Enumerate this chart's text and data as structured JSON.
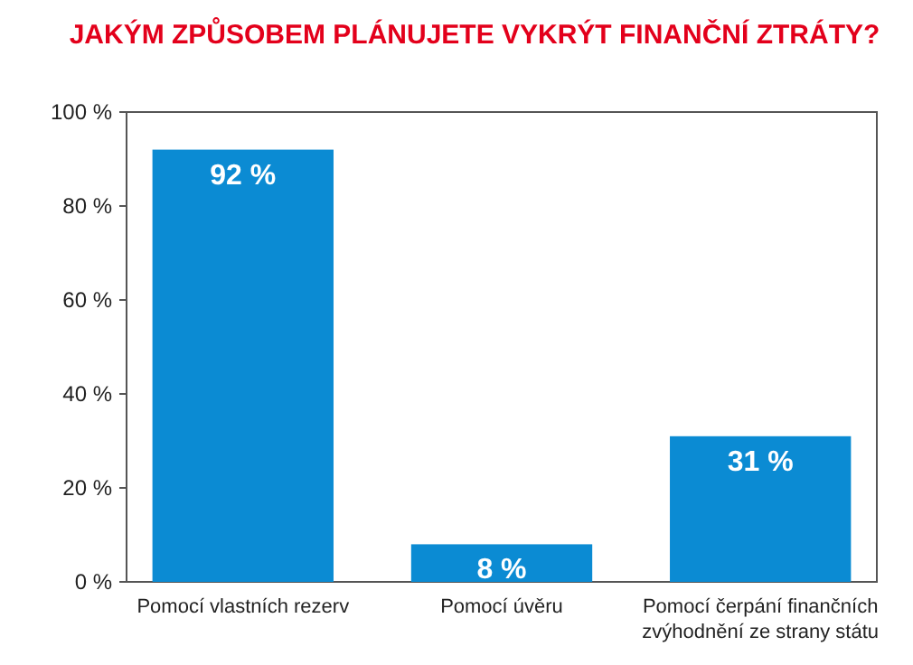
{
  "chart_data": {
    "type": "bar",
    "title": "JAKÝM ZPŮSOBEM PLÁNUJETE VYKRÝT FINANČNÍ ZTRÁTY?",
    "categories": [
      "Pomocí vlastních rezerv",
      "Pomocí úvěru",
      "Pomocí čerpání finančních zvýhodnění ze strany státu"
    ],
    "values": [
      92,
      8,
      31
    ],
    "value_labels": [
      "92 %",
      "8 %",
      "31 %"
    ],
    "color": "#0b8bd3",
    "ylim": [
      0,
      100
    ],
    "yticks": [
      {
        "value": 0,
        "label": "0 %"
      },
      {
        "value": 20,
        "label": "20 %"
      },
      {
        "value": 40,
        "label": "40 %"
      },
      {
        "value": 60,
        "label": "60 %"
      },
      {
        "value": 80,
        "label": "80 %"
      },
      {
        "value": 100,
        "label": "100 %"
      }
    ],
    "grid": false
  }
}
